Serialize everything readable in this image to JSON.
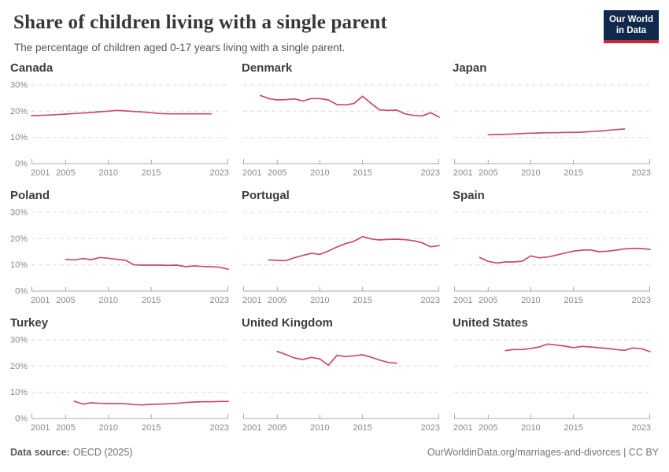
{
  "header": {
    "title": "Share of children living with a single parent",
    "subtitle": "The percentage of children aged 0-17 years living with a single parent.",
    "logo_line1": "Our World",
    "logo_line2": "in Data",
    "logo_bg_color": "#10294c",
    "logo_stripe_color": "#c32a35"
  },
  "footer": {
    "source_label": "Data source:",
    "source_value": "OECD (2025)",
    "link_text": "OurWorldinData.org/marriages-and-divorces | CC BY"
  },
  "style": {
    "line_color": "#c84d60",
    "grid_color": "#dcdcdc",
    "axis_color": "#a8a8a8",
    "tick_label_color": "#8a8a8a"
  },
  "axis": {
    "x_domain": [
      2001,
      2024
    ],
    "x_ticks": [
      2001,
      2005,
      2010,
      2015,
      2023
    ],
    "y_ticks": [
      0,
      10,
      20,
      30
    ],
    "ylim": [
      0,
      30
    ],
    "grid": "dashed",
    "legend": "none"
  },
  "chart_data": [
    {
      "type": "line",
      "title": "Canada",
      "show_y_labels": true,
      "x": [
        2001,
        2002,
        2003,
        2004,
        2005,
        2006,
        2007,
        2008,
        2009,
        2010,
        2011,
        2012,
        2013,
        2014,
        2015,
        2016,
        2017,
        2018,
        2019,
        2020,
        2021,
        2022
      ],
      "y": [
        18.3,
        18.4,
        18.5,
        18.7,
        18.9,
        19.1,
        19.3,
        19.5,
        19.8,
        20.0,
        20.3,
        20.1,
        19.9,
        19.7,
        19.4,
        19.1,
        19.0,
        19.0,
        19.0,
        19.0,
        19.0,
        19.0
      ]
    },
    {
      "type": "line",
      "title": "Denmark",
      "show_y_labels": false,
      "x": [
        2003,
        2004,
        2005,
        2006,
        2007,
        2008,
        2009,
        2010,
        2011,
        2012,
        2013,
        2014,
        2015,
        2016,
        2017,
        2018,
        2019,
        2020,
        2021,
        2022,
        2023,
        2024
      ],
      "y": [
        26.0,
        24.8,
        24.3,
        24.4,
        24.7,
        23.9,
        24.8,
        24.8,
        24.3,
        22.5,
        22.4,
        22.9,
        25.7,
        23.0,
        20.5,
        20.3,
        20.4,
        19.0,
        18.4,
        18.2,
        19.4,
        17.7
      ]
    },
    {
      "type": "line",
      "title": "Japan",
      "show_y_labels": false,
      "x": [
        2005,
        2006,
        2007,
        2008,
        2009,
        2010,
        2011,
        2012,
        2013,
        2014,
        2015,
        2016,
        2017,
        2018,
        2019,
        2020,
        2021
      ],
      "y": [
        11.0,
        11.1,
        11.2,
        11.3,
        11.5,
        11.6,
        11.7,
        11.8,
        11.8,
        11.9,
        11.9,
        12.0,
        12.2,
        12.4,
        12.7,
        13.0,
        13.2
      ]
    },
    {
      "type": "line",
      "title": "Poland",
      "show_y_labels": true,
      "x": [
        2005,
        2006,
        2007,
        2008,
        2009,
        2010,
        2011,
        2012,
        2013,
        2014,
        2015,
        2016,
        2017,
        2018,
        2019,
        2020,
        2021,
        2022,
        2023,
        2024
      ],
      "y": [
        12.1,
        11.9,
        12.4,
        12.0,
        12.8,
        12.5,
        12.1,
        11.7,
        10.0,
        9.9,
        9.9,
        9.9,
        9.8,
        9.9,
        9.3,
        9.6,
        9.4,
        9.3,
        9.1,
        8.3
      ]
    },
    {
      "type": "line",
      "title": "Portugal",
      "show_y_labels": false,
      "x": [
        2004,
        2005,
        2006,
        2007,
        2008,
        2009,
        2010,
        2011,
        2012,
        2013,
        2014,
        2015,
        2016,
        2017,
        2018,
        2019,
        2020,
        2021,
        2022,
        2023,
        2024
      ],
      "y": [
        11.9,
        11.7,
        11.6,
        12.7,
        13.6,
        14.4,
        14.0,
        15.3,
        16.8,
        18.1,
        19.0,
        20.8,
        19.9,
        19.5,
        19.7,
        19.8,
        19.6,
        19.2,
        18.4,
        16.9,
        17.3
      ]
    },
    {
      "type": "line",
      "title": "Spain",
      "show_y_labels": false,
      "x": [
        2004,
        2005,
        2006,
        2007,
        2008,
        2009,
        2010,
        2011,
        2012,
        2013,
        2014,
        2015,
        2016,
        2017,
        2018,
        2019,
        2020,
        2021,
        2022,
        2023,
        2024
      ],
      "y": [
        12.8,
        11.3,
        10.7,
        11.1,
        11.1,
        11.4,
        13.4,
        12.7,
        13.0,
        13.7,
        14.5,
        15.2,
        15.6,
        15.7,
        15.0,
        15.2,
        15.6,
        16.1,
        16.3,
        16.2,
        15.9
      ]
    },
    {
      "type": "line",
      "title": "Turkey",
      "show_y_labels": true,
      "x": [
        2006,
        2007,
        2008,
        2009,
        2010,
        2011,
        2012,
        2013,
        2014,
        2015,
        2016,
        2017,
        2018,
        2019,
        2020,
        2021,
        2022,
        2023,
        2024
      ],
      "y": [
        6.6,
        5.5,
        6.0,
        5.8,
        5.7,
        5.7,
        5.6,
        5.3,
        5.2,
        5.4,
        5.5,
        5.6,
        5.8,
        6.1,
        6.3,
        6.4,
        6.4,
        6.5,
        6.5
      ]
    },
    {
      "type": "line",
      "title": "United Kingdom",
      "show_y_labels": false,
      "x": [
        2005,
        2006,
        2007,
        2008,
        2009,
        2010,
        2011,
        2012,
        2013,
        2014,
        2015,
        2016,
        2017,
        2018,
        2019
      ],
      "y": [
        25.6,
        24.4,
        23.1,
        22.5,
        23.3,
        22.7,
        20.3,
        24.1,
        23.6,
        23.9,
        24.3,
        23.4,
        22.3,
        21.4,
        21.1
      ]
    },
    {
      "type": "line",
      "title": "United States",
      "show_y_labels": false,
      "x": [
        2007,
        2008,
        2009,
        2010,
        2011,
        2012,
        2013,
        2014,
        2015,
        2016,
        2017,
        2018,
        2019,
        2020,
        2021,
        2022,
        2023,
        2024
      ],
      "y": [
        25.9,
        26.3,
        26.3,
        26.7,
        27.3,
        28.4,
        28.0,
        27.6,
        27.0,
        27.5,
        27.3,
        27.0,
        26.7,
        26.3,
        26.0,
        26.9,
        26.6,
        25.5
      ]
    }
  ]
}
